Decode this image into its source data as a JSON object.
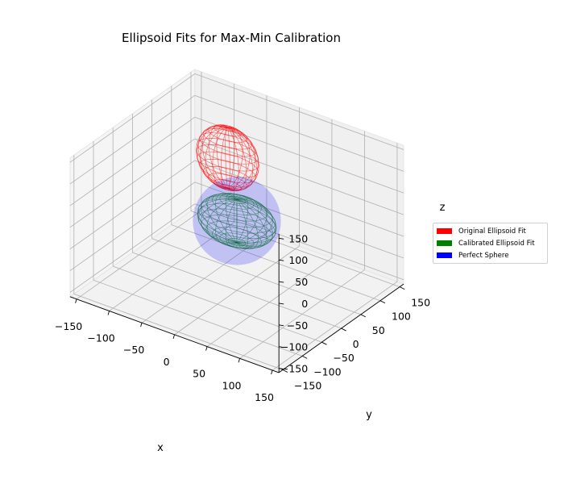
{
  "chart_data": {
    "type": "3d-surface",
    "title": "Ellipsoid Fits for Max-Min Calibration",
    "xlabel": "x",
    "ylabel": "y",
    "zlabel": "z",
    "xlim": [
      -160,
      160
    ],
    "ylim": [
      -160,
      160
    ],
    "zlim": [
      -160,
      160
    ],
    "xticks": [
      "−150",
      "−100",
      "−50",
      "0",
      "50",
      "100",
      "150"
    ],
    "yticks": [
      "−150",
      "−100",
      "−50",
      "0",
      "50",
      "100",
      "150"
    ],
    "zticks": [
      "−150",
      "−100",
      "−50",
      "0",
      "50",
      "100",
      "150"
    ],
    "grid": true,
    "legend_position": "right",
    "series": [
      {
        "name": "Original Ellipsoid Fit",
        "color": "#ff0000",
        "center": [
          -50,
          60,
          80
        ],
        "radii": [
          45,
          28,
          70
        ],
        "style": "wireframe"
      },
      {
        "name": "Calibrated Ellipsoid Fit",
        "color": "#008000",
        "center": [
          0,
          0,
          0
        ],
        "radii": [
          55,
          42,
          50
        ],
        "style": "wireframe"
      },
      {
        "name": "Perfect Sphere",
        "color": "#0000ff",
        "center": [
          0,
          0,
          0
        ],
        "radii": [
          65,
          65,
          65
        ],
        "style": "translucent surface"
      }
    ]
  }
}
